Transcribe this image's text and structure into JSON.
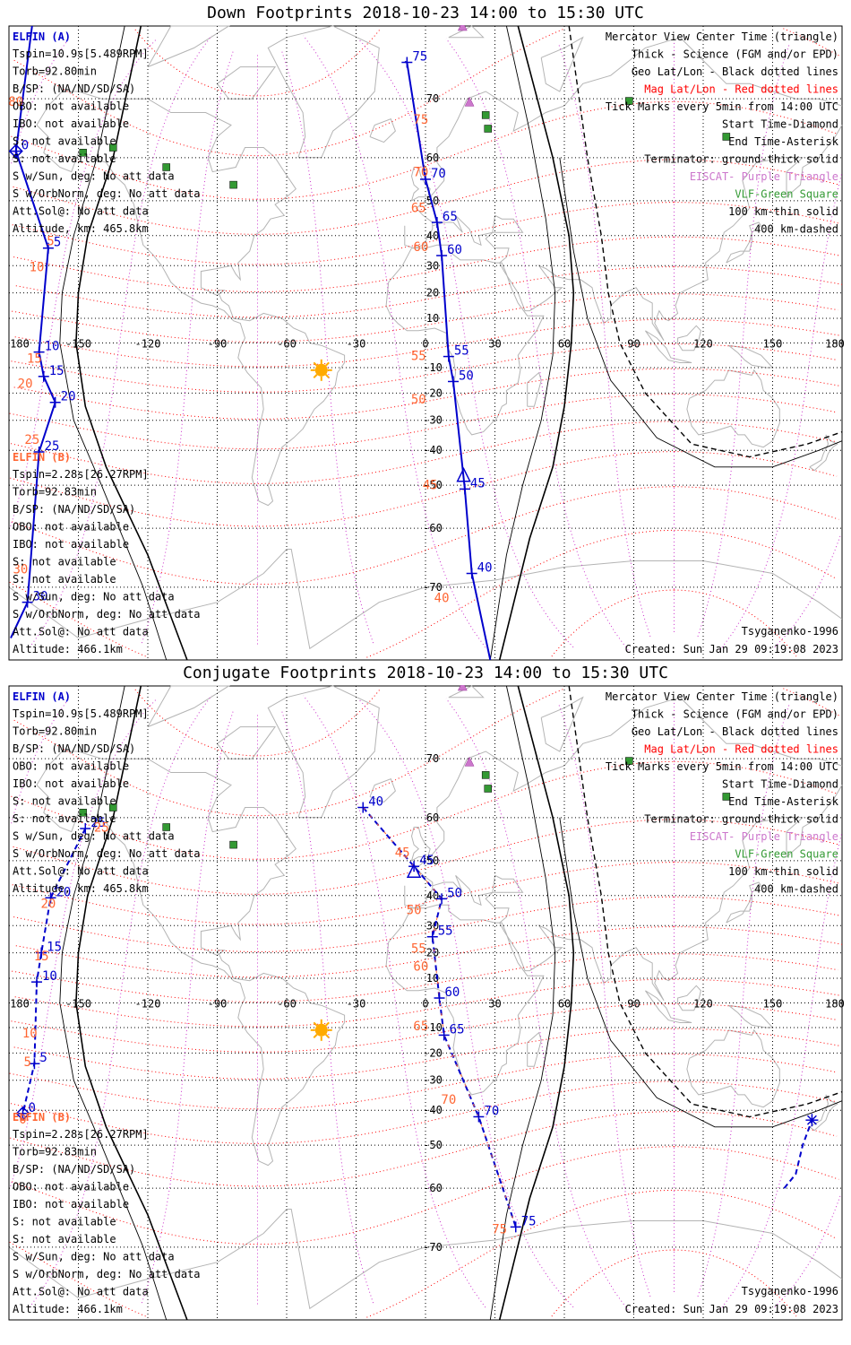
{
  "colors": {
    "elfin_a": "#0000cc",
    "elfin_label": "#ff6633",
    "mag_red": "#ff0000",
    "eiscat": "#cc77cc",
    "vlf": "#339933",
    "coast": "#b4b4b4",
    "sun": "#ffaa00"
  },
  "icons": {
    "sun": "sun-icon",
    "eiscat": "eiscat-triangle-icon",
    "vlf": "vlf-square-icon"
  },
  "legend": {
    "right": [
      "Mercator View Center Time (triangle)",
      "Thick - Science (FGM and/or EPD)",
      "Geo Lat/Lon - Black dotted lines",
      "Mag Lat/Lon - Red dotted lines",
      "Tick Marks every 5min from 14:00 UTC",
      "Start Time-Diamond",
      "End Time-Asterisk",
      "Terminator: ground-thick solid",
      "EISCAT- Purple Triangle",
      "VLF-Green Square",
      "100 km-thin solid",
      "400 km-dashed"
    ],
    "footer_model": "Tsyganenko-1996",
    "footer_created": "Created: Sun Jan 29 09:19:08 2023"
  },
  "elfin_a_info": {
    "name": "ELFIN (A)",
    "lines": [
      "Tspin=10.9s[5.489RPM]",
      "Torb=92.80min",
      "B/SP: (NA/ND/SD/SA)",
      "OBO: not available",
      "IBO: not available",
      "S: not available",
      "S: not available",
      "S w/Sun, deg: No att data",
      "S w/OrbNorm, deg: No att data",
      "Att.Sol@: No att data",
      "Altitude, km: 465.8km"
    ]
  },
  "elfin_b_info": {
    "name": "ELFIN (B)",
    "lines": [
      "Tspin=2.28s[26.27RPM]",
      "Torb=92.83min",
      "B/SP: (NA/ND/SD/SA)",
      "OBO: not available",
      "IBO: not available",
      "S: not available",
      "S: not available",
      "S w/Sun, deg: No att data",
      "S w/OrbNorm, deg: No att data",
      "Att.Sol@: No att data",
      "Altitude: 466.1km"
    ]
  },
  "chart_data": [
    {
      "type": "scatter",
      "title": "Down Footprints 2018-10-23 14:00 to 15:30 UTC",
      "projection": "Mercator",
      "xlim": [
        -180,
        180
      ],
      "ylim": [
        -78,
        78
      ],
      "xticks": [
        -180,
        -150,
        -120,
        -90,
        -60,
        -30,
        0,
        30,
        60,
        90,
        120,
        150,
        180
      ],
      "xtick_labels": [
        "180",
        "-150",
        "-120",
        "-90",
        "-60",
        "-30",
        "0",
        "30",
        "60",
        "90",
        "120",
        "150",
        "180"
      ],
      "yticks": [
        -70,
        -60,
        -50,
        -40,
        -30,
        -20,
        -10,
        0,
        10,
        20,
        30,
        40,
        50,
        60,
        70
      ],
      "grid": true,
      "sun": {
        "lon": -45,
        "lat": -11
      },
      "eiscat": [
        {
          "lon": 16,
          "lat": 78
        },
        {
          "lon": 19,
          "lat": 69.6
        }
      ],
      "vlf": [
        {
          "lon": -135,
          "lat": 62
        },
        {
          "lon": -148,
          "lat": 61
        },
        {
          "lon": -112,
          "lat": 58
        },
        {
          "lon": -83,
          "lat": 54
        },
        {
          "lon": 26,
          "lat": 67.6
        },
        {
          "lon": 27,
          "lat": 65.4
        },
        {
          "lon": 88,
          "lat": 69.7
        },
        {
          "lon": 130,
          "lat": 64
        }
      ],
      "series": [
        {
          "name": "ELFIN (A)",
          "style": "solid",
          "points": [
            {
              "t": "0",
              "lon": -177,
              "lat": 61.3
            },
            {
              "t": "5",
              "lon": -163,
              "lat": 36
            },
            {
              "t": "10",
              "lon": -167,
              "lat": -3.7
            },
            {
              "t": "15",
              "lon": -165,
              "lat": -13.5
            },
            {
              "t": "20",
              "lon": -160,
              "lat": -23.5
            },
            {
              "t": "25",
              "lon": -167,
              "lat": -40.5
            },
            {
              "t": "30",
              "lon": -172,
              "lat": -72
            },
            {
              "t": "75",
              "lon": -8,
              "lat": 74.5
            },
            {
              "t": "70",
              "lon": 0,
              "lat": 55.3
            },
            {
              "t": "65",
              "lon": 5,
              "lat": 44
            },
            {
              "t": "60",
              "lon": 7,
              "lat": 33.5
            },
            {
              "t": "55",
              "lon": 10,
              "lat": -5.5
            },
            {
              "t": "50",
              "lon": 12,
              "lat": -15.5
            },
            {
              "t": "45",
              "lon": 17,
              "lat": -51
            },
            {
              "t": "40",
              "lon": 20,
              "lat": -68
            }
          ],
          "mag_labels": [
            {
              "t": "80",
              "lon": -177,
              "lat": 69
            },
            {
              "t": "5",
              "lon": -162,
              "lat": 37
            },
            {
              "t": "10",
              "lon": -168,
              "lat": 28
            },
            {
              "t": "15",
              "lon": -169,
              "lat": -8
            },
            {
              "t": "20",
              "lon": -173,
              "lat": -18
            },
            {
              "t": "25",
              "lon": -170,
              "lat": -38
            },
            {
              "t": "30",
              "lon": -175,
              "lat": -68
            },
            {
              "t": "75",
              "lon": -2,
              "lat": 66.2
            },
            {
              "t": "70",
              "lon": -2,
              "lat": 56
            },
            {
              "t": "65",
              "lon": -3,
              "lat": 47
            },
            {
              "t": "60",
              "lon": -2,
              "lat": 35
            },
            {
              "t": "55",
              "lon": -3,
              "lat": -7
            },
            {
              "t": "50",
              "lon": -3,
              "lat": -24
            },
            {
              "t": "45",
              "lon": 2,
              "lat": -51
            },
            {
              "t": "40",
              "lon": 7,
              "lat": -72
            }
          ]
        }
      ]
    },
    {
      "type": "scatter",
      "title": "Conjugate Footprints 2018-10-23 14:00 to 15:30 UTC",
      "projection": "Mercator",
      "xlim": [
        -180,
        180
      ],
      "ylim": [
        -78,
        78
      ],
      "xticks": [
        -180,
        -150,
        -120,
        -90,
        -60,
        -30,
        0,
        30,
        60,
        90,
        120,
        150,
        180
      ],
      "xtick_labels": [
        "180",
        "-150",
        "-120",
        "-90",
        "-60",
        "-30",
        "0",
        "30",
        "60",
        "90",
        "120",
        "150",
        "180"
      ],
      "yticks": [
        -70,
        -60,
        -50,
        -40,
        -30,
        -20,
        -10,
        0,
        10,
        20,
        30,
        40,
        50,
        60,
        70
      ],
      "grid": true,
      "sun": {
        "lon": -45,
        "lat": -11
      },
      "eiscat": [
        {
          "lon": 16,
          "lat": 78
        },
        {
          "lon": 19,
          "lat": 69.6
        }
      ],
      "vlf": [
        {
          "lon": -135,
          "lat": 62
        },
        {
          "lon": -148,
          "lat": 61
        },
        {
          "lon": -112,
          "lat": 58
        },
        {
          "lon": -83,
          "lat": 54
        },
        {
          "lon": 26,
          "lat": 67.6
        },
        {
          "lon": 27,
          "lat": 65.4
        },
        {
          "lon": 88,
          "lat": 69.7
        },
        {
          "lon": 130,
          "lat": 64
        }
      ],
      "series": [
        {
          "name": "ELFIN (A)",
          "style": "dashed",
          "points": [
            {
              "t": "25",
              "lon": -147,
              "lat": 57.7
            },
            {
              "t": "20",
              "lon": -162,
              "lat": 39.3
            },
            {
              "t": "15",
              "lon": -166,
              "lat": 20
            },
            {
              "t": "10",
              "lon": -168,
              "lat": 8.5
            },
            {
              "t": "5",
              "lon": -169,
              "lat": -24
            },
            {
              "t": "0",
              "lon": -174,
              "lat": -41
            },
            {
              "t": "40",
              "lon": -27,
              "lat": 62
            },
            {
              "t": "45",
              "lon": -5,
              "lat": 48.5
            },
            {
              "t": "50",
              "lon": 7,
              "lat": 39
            },
            {
              "t": "55",
              "lon": 3,
              "lat": 26
            },
            {
              "t": "60",
              "lon": 6,
              "lat": 2
            },
            {
              "t": "65",
              "lon": 8,
              "lat": -13
            },
            {
              "t": "70",
              "lon": 23,
              "lat": -42
            },
            {
              "t": "75",
              "lon": 39,
              "lat": -67
            },
            {
              "t": "end",
              "lon": 167,
              "lat": -43
            }
          ],
          "mag_labels": [
            {
              "t": "25",
              "lon": -140,
              "lat": 57
            },
            {
              "t": "20",
              "lon": -163,
              "lat": 36
            },
            {
              "t": "15",
              "lon": -166,
              "lat": 17
            },
            {
              "t": "10",
              "lon": -171,
              "lat": -14
            },
            {
              "t": "5",
              "lon": -172,
              "lat": -25
            },
            {
              "t": "0",
              "lon": -174,
              "lat": -44
            },
            {
              "t": "45",
              "lon": -10,
              "lat": 51
            },
            {
              "t": "50",
              "lon": -5,
              "lat": 34
            },
            {
              "t": "55",
              "lon": -3,
              "lat": 20
            },
            {
              "t": "60",
              "lon": -2,
              "lat": 13
            },
            {
              "t": "65",
              "lon": -2,
              "lat": -11
            },
            {
              "t": "70",
              "lon": 10,
              "lat": -38
            },
            {
              "t": "75",
              "lon": 32,
              "lat": -68
            }
          ]
        }
      ]
    }
  ]
}
